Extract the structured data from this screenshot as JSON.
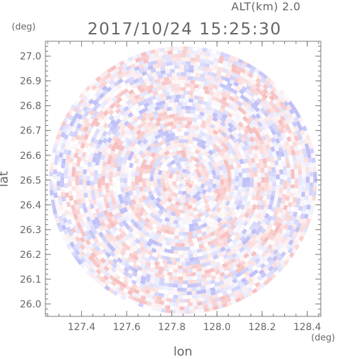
{
  "header": {
    "altitude_label": "ALT(km) 2.0",
    "timestamp": "2017/10/24 15:25:30"
  },
  "axes": {
    "y_unit": "(deg)",
    "x_unit": "(deg)",
    "x_title": "lon",
    "y_title": "lat"
  },
  "chart_data": {
    "type": "heatmap",
    "title": "2017/10/24 15:25:30",
    "subtitle": "ALT(km) 2.0",
    "xlabel": "lon",
    "ylabel": "lat",
    "xunit": "(deg)",
    "yunit": "(deg)",
    "xlim": [
      127.24,
      128.46
    ],
    "ylim": [
      25.95,
      27.06
    ],
    "x_ticks": [
      127.4,
      127.6,
      127.8,
      128.0,
      128.2,
      128.4
    ],
    "x_tick_labels": [
      "127.4",
      "127.6",
      "127.8",
      "128.0",
      "128.2",
      "128.4"
    ],
    "y_ticks": [
      26.0,
      26.1,
      26.2,
      26.3,
      26.4,
      26.5,
      26.6,
      26.7,
      26.8,
      26.9,
      27.0
    ],
    "y_tick_labels": [
      "26.0",
      "26.1",
      "26.2",
      "26.3",
      "26.4",
      "26.5",
      "26.6",
      "26.7",
      "26.8",
      "26.9",
      "27.0"
    ],
    "radar_center": {
      "lon": 127.85,
      "lat": 26.5
    },
    "radar_range_deg_lat": 0.54,
    "colormap": {
      "negative": "#8a8cf0",
      "zero": "#ffffff",
      "positive": "#f08a8a"
    },
    "grid": false,
    "legend": "none"
  }
}
